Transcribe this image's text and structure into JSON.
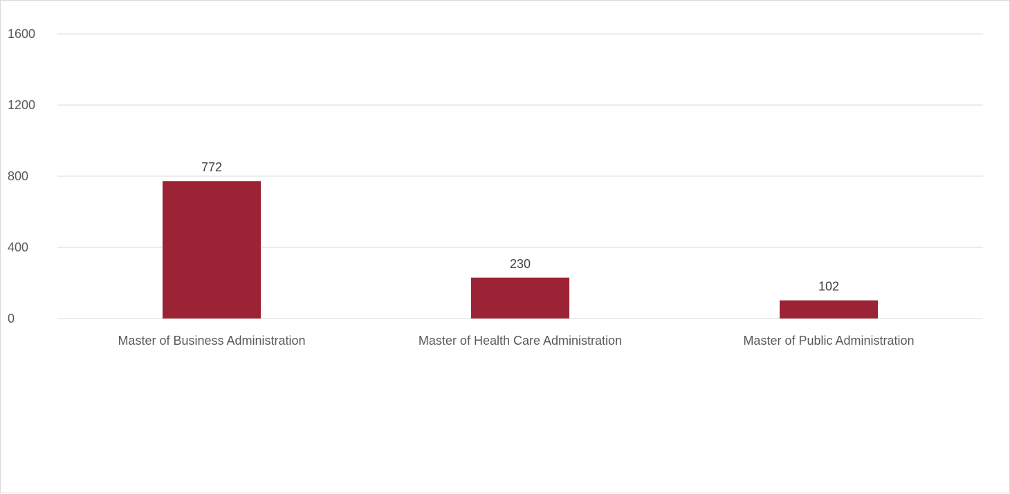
{
  "chart_data": {
    "type": "bar",
    "title": "",
    "xlabel": "",
    "ylabel": "",
    "categories": [
      "Master of Business Administration",
      "Master of Health Care Administration",
      "Master of Public Administration"
    ],
    "values": [
      772,
      230,
      102
    ],
    "data_labels": [
      "772",
      "230",
      "102"
    ],
    "ylim": [
      0,
      1600
    ],
    "yticks": [
      0,
      400,
      800,
      1200,
      1600
    ],
    "ytick_labels": [
      "0",
      "400",
      "800",
      "1200",
      "1600"
    ],
    "grid": true,
    "legend": "none",
    "bar_color": "#9b2335",
    "grid_color": "#d9d9d9"
  }
}
